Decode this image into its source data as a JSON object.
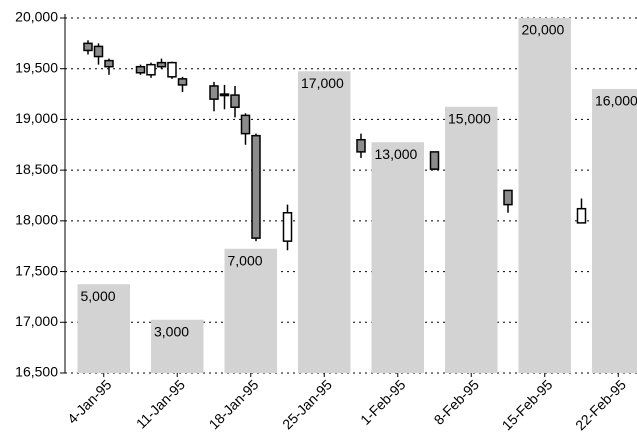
{
  "chart_data": {
    "type": "candlestick",
    "ylim": [
      16500,
      20000
    ],
    "yticks": [
      {
        "value": 16500,
        "label": "16,500"
      },
      {
        "value": 17000,
        "label": "17,000"
      },
      {
        "value": 17500,
        "label": "17,500"
      },
      {
        "value": 18000,
        "label": "18,000"
      },
      {
        "value": 18500,
        "label": "18,500"
      },
      {
        "value": 19000,
        "label": "19,000"
      },
      {
        "value": 19500,
        "label": "19,500"
      },
      {
        "value": 20000,
        "label": "20,000"
      }
    ],
    "y2lim": [
      0,
      20000
    ],
    "grid": true,
    "xticks": [
      {
        "value": "1995-01-04",
        "label": "4-Jan-95"
      },
      {
        "value": "1995-01-11",
        "label": "11-Jan-95"
      },
      {
        "value": "1995-01-18",
        "label": "18-Jan-95"
      },
      {
        "value": "1995-01-25",
        "label": "25-Jan-95"
      },
      {
        "value": "1995-02-01",
        "label": "1-Feb-95"
      },
      {
        "value": "1995-02-08",
        "label": "8-Feb-95"
      },
      {
        "value": "1995-02-15",
        "label": "15-Feb-95"
      },
      {
        "value": "1995-02-22",
        "label": "22-Feb-95"
      }
    ],
    "series": [
      {
        "type": "bar",
        "axis": "y2",
        "color": "#d3d3d3",
        "x": [
          "1995-01-04",
          "1995-01-11",
          "1995-01-18",
          "1995-01-25",
          "1995-02-01",
          "1995-02-08",
          "1995-02-15",
          "1995-02-22"
        ],
        "values": [
          5000,
          3000,
          7000,
          17000,
          13000,
          15000,
          20000,
          16000
        ],
        "value_labels": [
          "5,000",
          "3,000",
          "7,000",
          "17,000",
          "13,000",
          "15,000",
          "20,000",
          "16,000"
        ]
      },
      {
        "type": "candlestick",
        "up_color": "#ffffff",
        "down_color": "#8c8c8c",
        "x": [
          "1995-01-04",
          "1995-01-05",
          "1995-01-06",
          "1995-01-09",
          "1995-01-10",
          "1995-01-11",
          "1995-01-12",
          "1995-01-13",
          "1995-01-16",
          "1995-01-17",
          "1995-01-18",
          "1995-01-19",
          "1995-01-20",
          "1995-01-23",
          "1995-01-30",
          "1995-02-06",
          "1995-02-13",
          "1995-02-20"
        ],
        "open": [
          19750,
          19720,
          19580,
          19520,
          19440,
          19560,
          19420,
          19400,
          19330,
          19250,
          19240,
          19040,
          18840,
          17800,
          18800,
          18680,
          18300,
          17980
        ],
        "high": [
          19780,
          19750,
          19600,
          19540,
          19560,
          19600,
          19570,
          19420,
          19370,
          19340,
          19330,
          19060,
          18860,
          18160,
          18860,
          18680,
          18300,
          18220
        ],
        "low": [
          19640,
          19540,
          19440,
          19440,
          19410,
          19500,
          19400,
          19270,
          19080,
          19100,
          19020,
          18750,
          17800,
          17710,
          18620,
          18500,
          18080,
          17980
        ],
        "close": [
          19680,
          19620,
          19520,
          19460,
          19540,
          19520,
          19560,
          19340,
          19200,
          19240,
          19120,
          18860,
          17830,
          18080,
          18680,
          18510,
          18160,
          18120
        ]
      }
    ]
  }
}
